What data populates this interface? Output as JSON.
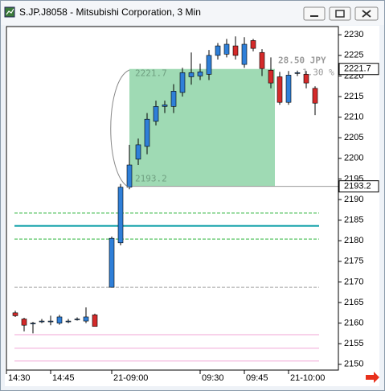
{
  "window": {
    "title": "S.JP.J8058 - Mitsubishi Corporation, 3 Min"
  },
  "chart_data": {
    "type": "candlestick",
    "categories": [
      "14:30",
      null,
      null,
      null,
      null,
      "14:45",
      null,
      null,
      null,
      null,
      null,
      "21-09:00",
      null,
      null,
      null,
      null,
      null,
      null,
      null,
      null,
      null,
      "09:30",
      null,
      null,
      null,
      null,
      "09:45",
      null,
      null,
      null,
      null,
      "21-10:00",
      null,
      null,
      null
    ],
    "open": [
      null,
      2162.5,
      2161,
      2160,
      2160.5,
      2160.5,
      2160,
      2160.5,
      2161,
      2160.5,
      2162,
      2168.7,
      2179.5,
      2193,
      2199.8,
      2202.9,
      2209,
      2212.6,
      2212.6,
      2216,
      2219.8,
      2220,
      2220.4,
      2225,
      2225.3,
      2227.3,
      2222.8,
      2228.6,
      2225.7,
      2221.4,
      2219.8,
      2213.6,
      2220.6,
      2220.4,
      2217
    ],
    "high": [
      null,
      2163,
      2161.3,
      2160.3,
      2161,
      2161.8,
      2162,
      2161,
      2161.4,
      2163.8,
      2162.3,
      2181,
      2193.8,
      2203.3,
      2204.8,
      2211,
      2214,
      2214,
      2218,
      2222,
      2225.7,
      2223,
      2226.3,
      2228,
      2229,
      2229.6,
      2229.4,
      2229,
      2226.5,
      2224.5,
      2221,
      2221.2,
      2221.3,
      2221.2,
      2217.5
    ],
    "low": [
      null,
      2161.5,
      2158,
      2157.5,
      2160,
      2159.5,
      2159.6,
      2160,
      2160.6,
      2160,
      2159.2,
      2168.7,
      2178.9,
      2192.5,
      2198.4,
      2201,
      2208,
      2211,
      2211,
      2215,
      2217.9,
      2219,
      2219,
      2224,
      2224.5,
      2224,
      2222,
      2226,
      2220,
      2217,
      2213,
      2213,
      2220,
      2217,
      2210.5
    ],
    "close": [
      null,
      2161.8,
      2159.5,
      2160,
      2160.5,
      2160.5,
      2161.5,
      2160.5,
      2161,
      2161.5,
      2159.2,
      2180.6,
      2193,
      2198.4,
      2203.3,
      2209.5,
      2212.6,
      2213,
      2216.3,
      2220.8,
      2220.8,
      2221,
      2225,
      2227.3,
      2227.7,
      2225,
      2227.7,
      2226.7,
      2221.8,
      2218.3,
      2213.6,
      2220.2,
      2220.8,
      2218.3,
      2213.4
    ],
    "up_color": "#2f7fd8",
    "down_color": "#d42a2a",
    "ylim": [
      2148.6,
      2232
    ],
    "yticks": [
      2150,
      2155,
      2160,
      2165,
      2170,
      2175,
      2180,
      2185,
      2190,
      2195,
      2200,
      2205,
      2210,
      2215,
      2220,
      2225,
      2230
    ],
    "box": {
      "high": 2221.7,
      "low": 2193.2,
      "change": "28.50 JPY",
      "change_pct": "1.30 %",
      "color": "#9fdab4"
    },
    "levels": [
      {
        "value": 2186.7,
        "color": "#2bb43a",
        "style": "dashed"
      },
      {
        "value": 2183.6,
        "color": "#17a3ab",
        "style": "solid"
      },
      {
        "value": 2180.4,
        "color": "#2bb43a",
        "style": "dashed"
      },
      {
        "value": 2168.7,
        "color": "#a0a0a0",
        "style": "dashed"
      },
      {
        "value": 2157.2,
        "color": "#f0a6d6",
        "style": "solid"
      },
      {
        "value": 2153.9,
        "color": "#f0a6d6",
        "style": "solid"
      },
      {
        "value": 2150.8,
        "color": "#f0a6d6",
        "style": "solid"
      }
    ]
  }
}
